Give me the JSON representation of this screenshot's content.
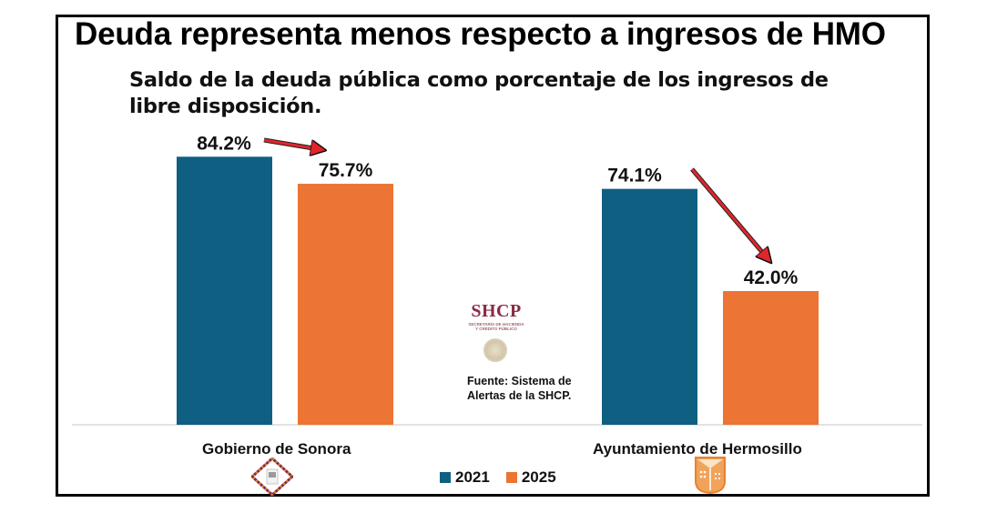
{
  "title": "Deuda representa menos respecto a ingresos de HMO",
  "subtitle": "Saldo de la deuda pública como porcentaje de los ingresos de libre disposición.",
  "source": {
    "logo_text": "SHCP",
    "logo_subtext_1": "SECRETARÍA DE HACIENDA",
    "logo_subtext_2": "Y CRÉDITO PÚBLICO",
    "line1": "Fuente: Sistema de",
    "line2": "Alertas de la SHCP."
  },
  "colors": {
    "series_2021": "#0f5f82",
    "series_2025": "#ec7434",
    "arrow": "#e0262b",
    "baseline": "#d9d9d9"
  },
  "icons": {
    "sonora": "gobierno-sonora-logo-icon",
    "hermosillo": "hermosillo-coat-of-arms-icon",
    "shcp_seal": "mexico-seal-icon"
  },
  "chart_data": {
    "type": "bar",
    "title": "Deuda representa menos respecto a ingresos de HMO",
    "subtitle": "Saldo de la deuda pública como porcentaje de los ingresos de libre disposición.",
    "xlabel": "",
    "ylabel": "",
    "categories": [
      "Gobierno de Sonora",
      "Ayuntamiento de Hermosillo"
    ],
    "series": [
      {
        "name": "2021",
        "values": [
          84.2,
          74.1
        ],
        "labels": [
          "84.2%",
          "74.1%"
        ],
        "color": "#0f5f82"
      },
      {
        "name": "2025",
        "values": [
          75.7,
          42.0
        ],
        "labels": [
          "75.7%",
          "42.0%"
        ],
        "color": "#ec7434"
      }
    ],
    "ylim": [
      0,
      84.2
    ],
    "grid": false,
    "y_axis_visible": false,
    "legend": {
      "position": "bottom-center",
      "entries": [
        "2021",
        "2025"
      ]
    },
    "annotations": [
      {
        "type": "arrow",
        "from": "Gobierno de Sonora 2021",
        "to": "Gobierno de Sonora 2025",
        "color": "#e0262b"
      },
      {
        "type": "arrow",
        "from": "Ayuntamiento de Hermosillo 2021",
        "to": "Ayuntamiento de Hermosillo 2025",
        "color": "#e0262b"
      }
    ]
  }
}
